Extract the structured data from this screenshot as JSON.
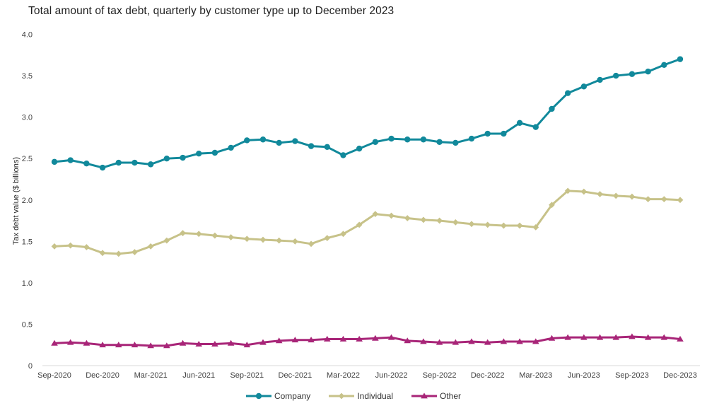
{
  "chart_data": {
    "type": "line",
    "title": "Total amount of tax debt, quarterly by customer type up to December 2023",
    "xlabel": "",
    "ylabel": "Tax debt value ($ billions)",
    "ylim": [
      0,
      4.0
    ],
    "y_ticks": [
      0,
      0.5,
      1.0,
      1.5,
      2.0,
      2.5,
      3.0,
      3.5,
      4.0
    ],
    "y_tick_labels": [
      "0",
      "0.5",
      "1.0",
      "1.5",
      "2.0",
      "2.5",
      "3.0",
      "3.5",
      "4.0"
    ],
    "grid": false,
    "legend_position": "bottom-center",
    "x_tick_every": 3,
    "x_tick_labels": [
      "Sep-2020",
      "Dec-2020",
      "Mar-2021",
      "Jun-2021",
      "Sep-2021",
      "Dec-2021",
      "Mar-2022",
      "Jun-2022",
      "Sep-2022",
      "Dec-2022",
      "Mar-2023",
      "Jun-2023",
      "Sep-2023",
      "Dec-2023"
    ],
    "x": [
      "Sep-2020",
      "Oct-2020",
      "Nov-2020",
      "Dec-2020",
      "Jan-2021",
      "Feb-2021",
      "Mar-2021",
      "Apr-2021",
      "May-2021",
      "Jun-2021",
      "Jul-2021",
      "Aug-2021",
      "Sep-2021",
      "Oct-2021",
      "Nov-2021",
      "Dec-2021",
      "Jan-2022",
      "Feb-2022",
      "Mar-2022",
      "Apr-2022",
      "May-2022",
      "Jun-2022",
      "Jul-2022",
      "Aug-2022",
      "Sep-2022",
      "Oct-2022",
      "Nov-2022",
      "Dec-2022",
      "Jan-2023",
      "Feb-2023",
      "Mar-2023",
      "Apr-2023",
      "May-2023",
      "Jun-2023",
      "Jul-2023",
      "Aug-2023",
      "Sep-2023",
      "Oct-2023",
      "Nov-2023",
      "Dec-2023"
    ],
    "series": [
      {
        "name": "Company",
        "color": "#11899B",
        "marker": "circle",
        "values": [
          2.46,
          2.48,
          2.44,
          2.39,
          2.45,
          2.45,
          2.43,
          2.5,
          2.51,
          2.56,
          2.57,
          2.63,
          2.72,
          2.73,
          2.69,
          2.71,
          2.65,
          2.64,
          2.54,
          2.62,
          2.7,
          2.74,
          2.73,
          2.73,
          2.7,
          2.69,
          2.74,
          2.8,
          2.8,
          2.93,
          2.88,
          3.1,
          3.29,
          3.37,
          3.45,
          3.5,
          3.52,
          3.55,
          3.63,
          3.7
        ]
      },
      {
        "name": "Individual",
        "color": "#C7C289",
        "marker": "diamond",
        "values": [
          1.44,
          1.45,
          1.43,
          1.36,
          1.35,
          1.37,
          1.44,
          1.51,
          1.6,
          1.59,
          1.57,
          1.55,
          1.53,
          1.52,
          1.51,
          1.5,
          1.47,
          1.54,
          1.59,
          1.7,
          1.83,
          1.81,
          1.78,
          1.76,
          1.75,
          1.73,
          1.71,
          1.7,
          1.69,
          1.69,
          1.67,
          1.94,
          2.11,
          2.1,
          2.07,
          2.05,
          2.04,
          2.01,
          2.01,
          2.0
        ]
      },
      {
        "name": "Other",
        "color": "#A82578",
        "marker": "triangle-up",
        "values": [
          0.27,
          0.28,
          0.27,
          0.25,
          0.25,
          0.25,
          0.24,
          0.24,
          0.27,
          0.26,
          0.26,
          0.27,
          0.25,
          0.28,
          0.3,
          0.31,
          0.31,
          0.32,
          0.32,
          0.32,
          0.33,
          0.34,
          0.3,
          0.29,
          0.28,
          0.28,
          0.29,
          0.28,
          0.29,
          0.29,
          0.29,
          0.33,
          0.34,
          0.34,
          0.34,
          0.34,
          0.35,
          0.34,
          0.34,
          0.32
        ]
      }
    ],
    "axis_line_color": "#D9D9D9",
    "tick_label_color": "#404040",
    "title_color": "#212121"
  }
}
